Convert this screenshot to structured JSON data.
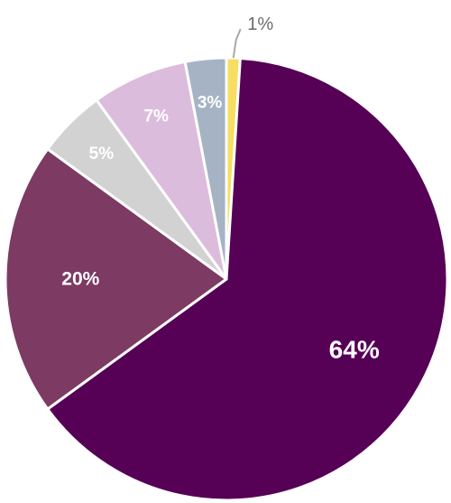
{
  "chart_data": {
    "type": "pie",
    "title": "",
    "start_angle_deg": 0,
    "direction": "clockwise",
    "legend": "none",
    "slices": [
      {
        "label": "1%",
        "value": 1,
        "color": "#f5de62",
        "label_position": "outside",
        "label_color": "#6b6b6b"
      },
      {
        "label": "64%",
        "value": 64,
        "color": "#560056",
        "label_position": "inside",
        "label_color": "#ffffff"
      },
      {
        "label": "20%",
        "value": 20,
        "color": "#7d3a63",
        "label_position": "inside",
        "label_color": "#ffffff"
      },
      {
        "label": "5%",
        "value": 5,
        "color": "#d2d2d2",
        "label_position": "inside",
        "label_color": "#ffffff"
      },
      {
        "label": "7%",
        "value": 7,
        "color": "#dcbcdc",
        "label_position": "inside",
        "label_color": "#ffffff"
      },
      {
        "label": "3%",
        "value": 3,
        "color": "#a6b3c5",
        "label_position": "inside",
        "label_color": "#ffffff"
      }
    ]
  }
}
